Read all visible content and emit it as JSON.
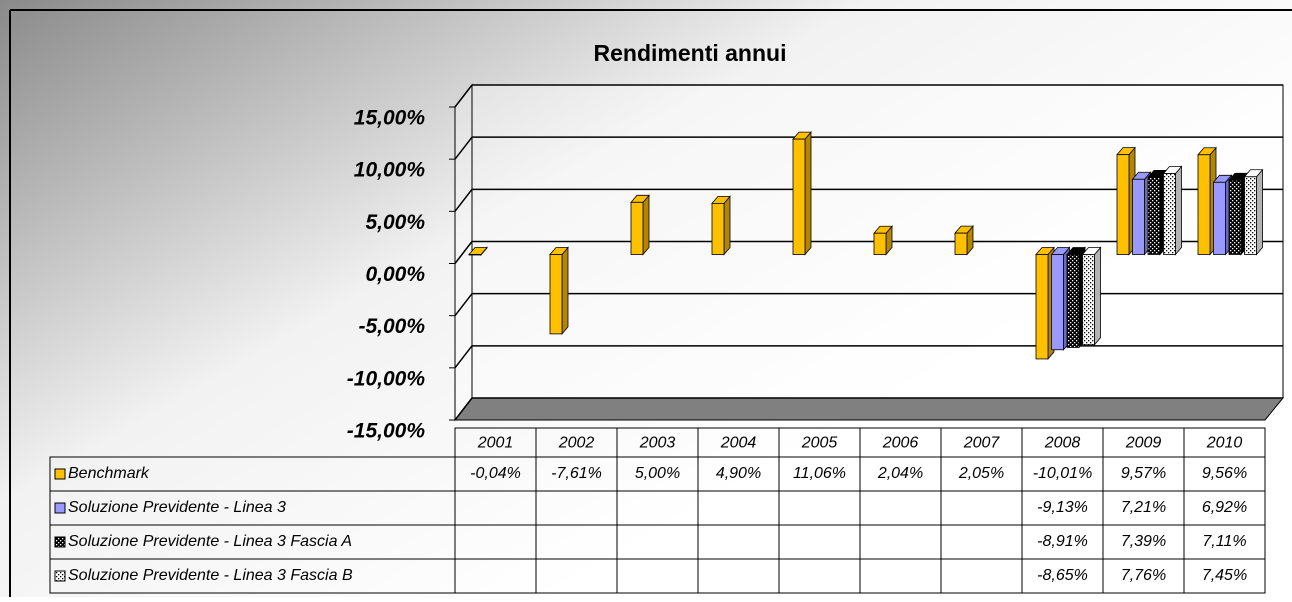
{
  "chart_data": {
    "type": "bar3d",
    "title": "Rendimenti annui",
    "categories": [
      "2001",
      "2002",
      "2003",
      "2004",
      "2005",
      "2006",
      "2007",
      "2008",
      "2009",
      "2010"
    ],
    "series": [
      {
        "name": "Benchmark",
        "color": "#ffc000",
        "values": [
          -0.04,
          -7.61,
          5.0,
          4.9,
          11.06,
          2.04,
          2.05,
          -10.01,
          9.57,
          9.56
        ],
        "value_labels": [
          "-0,04%",
          "-7,61%",
          "5,00%",
          "4,90%",
          "11,06%",
          "2,04%",
          "2,05%",
          "-10,01%",
          "9,57%",
          "9,56%"
        ]
      },
      {
        "name": "Soluzione Previdente - Linea 3",
        "color": "#9999ff",
        "values": [
          null,
          null,
          null,
          null,
          null,
          null,
          null,
          -9.13,
          7.21,
          6.92
        ],
        "value_labels": [
          null,
          null,
          null,
          null,
          null,
          null,
          null,
          "-9,13%",
          "7,21%",
          "6,92%"
        ]
      },
      {
        "name": "Soluzione Previdente - Linea 3 Fascia A",
        "color": "#000000",
        "values": [
          null,
          null,
          null,
          null,
          null,
          null,
          null,
          -8.91,
          7.39,
          7.11
        ],
        "value_labels": [
          null,
          null,
          null,
          null,
          null,
          null,
          null,
          "-8,91%",
          "7,39%",
          "7,11%"
        ]
      },
      {
        "name": "Soluzione Previdente - Linea 3 Fascia B",
        "color": "#ffffff",
        "values": [
          null,
          null,
          null,
          null,
          null,
          null,
          null,
          -8.65,
          7.76,
          7.45
        ],
        "value_labels": [
          null,
          null,
          null,
          null,
          null,
          null,
          null,
          "-8,65%",
          "7,76%",
          "7,45%"
        ]
      }
    ],
    "ylim": [
      -15,
      15
    ],
    "yticks": [
      {
        "value": -15,
        "label": "-15,00%"
      },
      {
        "value": -10,
        "label": "-10,00%"
      },
      {
        "value": -5,
        "label": "-5,00%"
      },
      {
        "value": 0,
        "label": "0,00%"
      },
      {
        "value": 5,
        "label": "5,00%"
      },
      {
        "value": 10,
        "label": "10,00%"
      },
      {
        "value": 15,
        "label": "15,00%"
      }
    ],
    "grid": true
  }
}
